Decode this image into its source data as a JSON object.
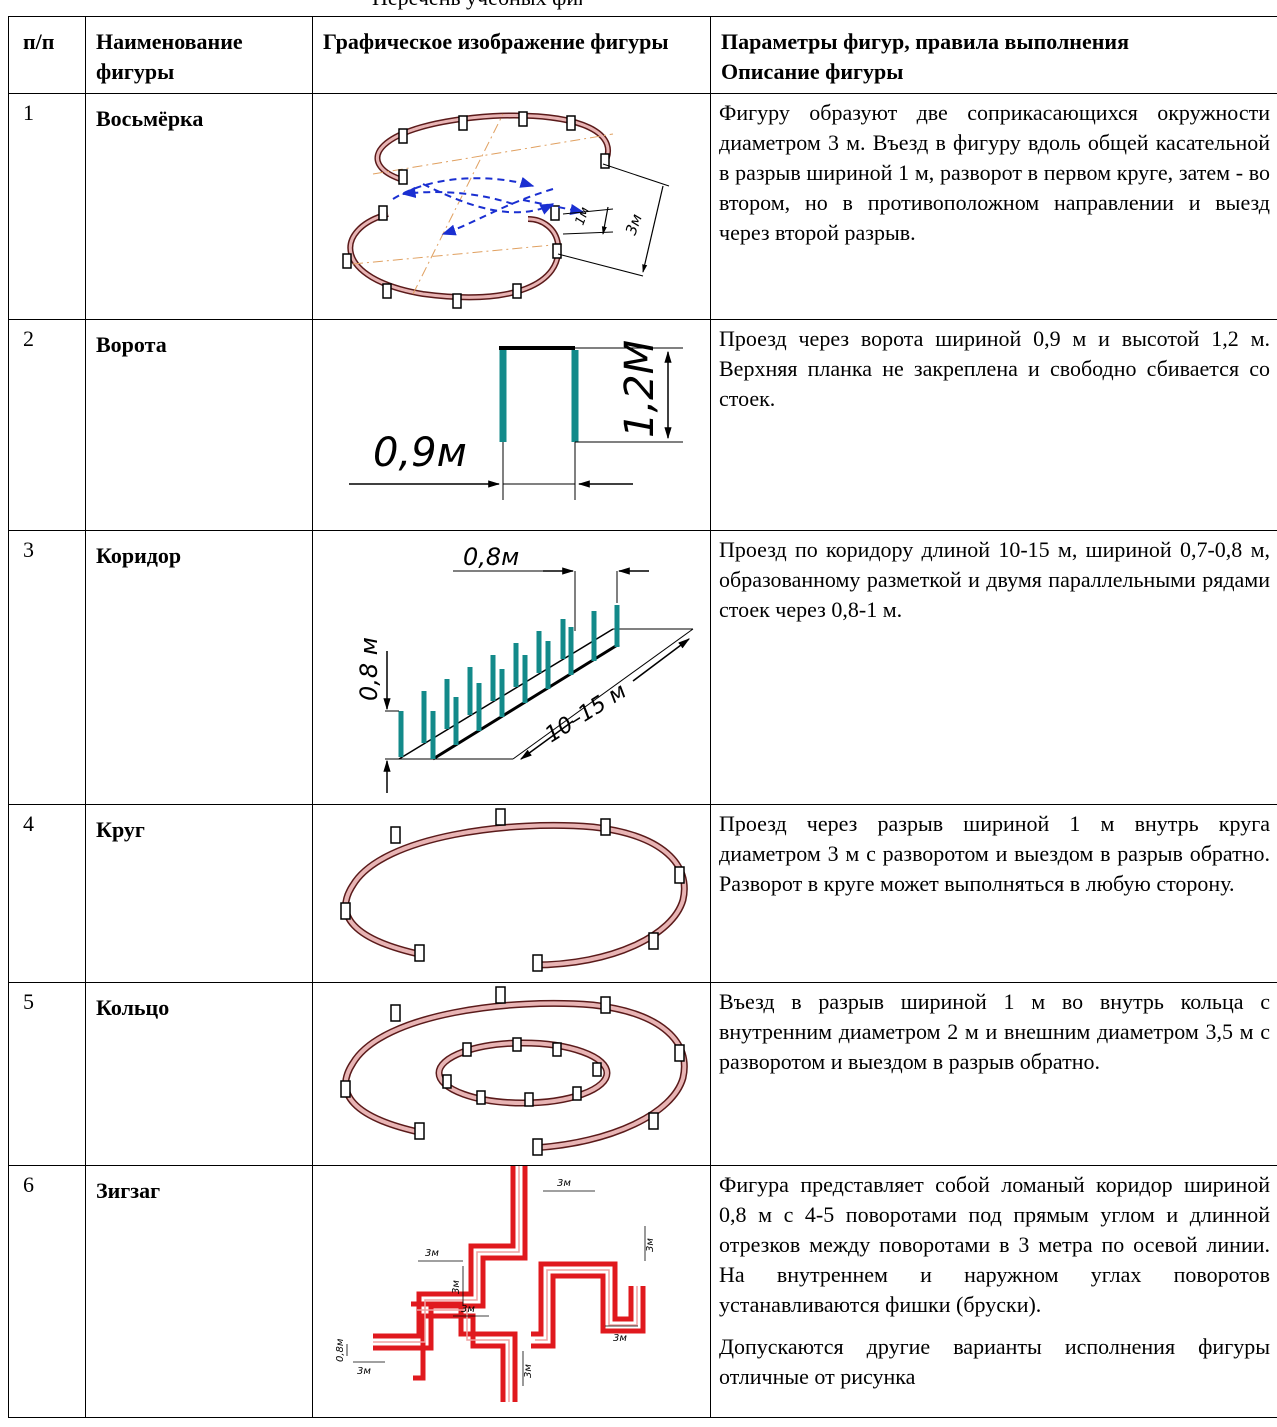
{
  "header_fragment": "Перечень учебных фигур",
  "columns": {
    "num": "п/п",
    "name": "Наименование фигуры",
    "image": "Графическое изображение фигуры",
    "desc_title": "Параметры фигур, правила выполнения",
    "desc_sub": "Описание фигуры"
  },
  "rows": [
    {
      "num": "1",
      "name": "Восьмёрка",
      "desc": [
        "Фигуру образуют две соприкасающихся окружности диаметром 3 м. Въезд в фигуру вдоль общей касательной в разрыв шириной 1 м, разворот в первом круге, затем - во втором, но в противоположном направлении и выезд через второй разрыв."
      ],
      "labels": [
        "1м",
        "3м"
      ]
    },
    {
      "num": "2",
      "name": "Ворота",
      "desc": [
        "Проезд через ворота шириной 0,9 м и высотой 1,2 м. Верхняя планка не закреплена и свободно сбивается со стоек."
      ],
      "labels": [
        "0,9м",
        "1,2М"
      ]
    },
    {
      "num": "3",
      "name": "Коридор",
      "desc": [
        "Проезд по коридору длиной 10-15 м, шириной 0,7-0,8 м, образованному разметкой и двумя параллельными рядами стоек через 0,8-1 м."
      ],
      "labels": [
        "0,8м",
        "0,8 м",
        "10–15 м"
      ]
    },
    {
      "num": "4",
      "name": "Круг",
      "desc": [
        "Проезд через разрыв шириной 1 м внутрь круга диаметром 3 м с разворотом и выездом в разрыв обратно. Разворот в круге может выполняться в любую сторону."
      ],
      "labels": []
    },
    {
      "num": "5",
      "name": "Кольцо",
      "desc": [
        "Въезд в разрыв шириной 1 м во внутрь кольца с внутренним диаметром 2 м и внешним диаметром 3,5 м с разворотом и выездом в разрыв обратно."
      ],
      "labels": []
    },
    {
      "num": "6",
      "name": "Зигзаг",
      "desc": [
        "Фигура представляет собой ломаный коридор шириной 0,8 м с 4-5 поворотами под прямым углом и длинной отрезков между поворотами в 3 метра по осевой линии. На внутреннем и наружном углах поворотов устанавливаются фишки (бруски).",
        "Допускаются другие варианты исполнения фигуры отличные от рисунка"
      ],
      "labels": [
        "3м",
        "3м",
        "3м",
        "3м",
        "3м",
        "3м",
        "0,8м",
        "3м",
        "3м"
      ]
    }
  ],
  "colors": {
    "post": "#138a8a",
    "ring_fill": "#e8b4b4",
    "ring_stroke": "#5a1a1a",
    "zigzag": "#e0191e",
    "arrow_blue": "#1a2fd1"
  }
}
